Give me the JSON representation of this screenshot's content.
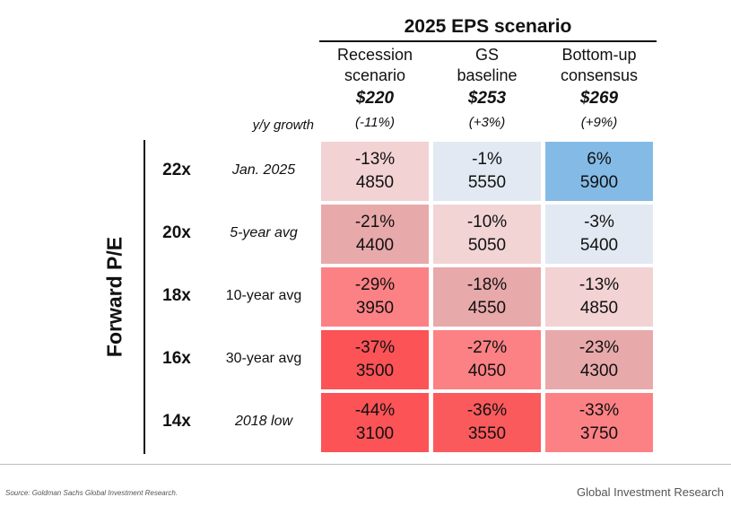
{
  "chart_data": {
    "type": "table",
    "title": "2025 EPS scenario",
    "row_axis_label": "Forward P/E",
    "growth_label": "y/y growth",
    "columns": [
      {
        "name": "Recession scenario",
        "line1": "Recession",
        "line2": "scenario",
        "eps": "$220",
        "growth": "(-11%)"
      },
      {
        "name": "GS baseline",
        "line1": "GS",
        "line2": "baseline",
        "eps": "$253",
        "growth": "(+3%)"
      },
      {
        "name": "Bottom-up consensus",
        "line1": "Bottom-up",
        "line2": "consensus",
        "eps": "$269",
        "growth": "(+9%)"
      }
    ],
    "rows": [
      {
        "pe": "22x",
        "desc": "Jan. 2025",
        "italic": true,
        "cells": [
          {
            "pct": "-13%",
            "level": "4850",
            "color": "#f2d2d3"
          },
          {
            "pct": "-1%",
            "level": "5550",
            "color": "#e2e9f2"
          },
          {
            "pct": "6%",
            "level": "5900",
            "color": "#84bbe6"
          }
        ]
      },
      {
        "pe": "20x",
        "desc": "5-year avg",
        "italic": true,
        "cells": [
          {
            "pct": "-21%",
            "level": "4400",
            "color": "#e8a9ab"
          },
          {
            "pct": "-10%",
            "level": "5050",
            "color": "#f2d4d5"
          },
          {
            "pct": "-3%",
            "level": "5400",
            "color": "#e2e9f2"
          }
        ]
      },
      {
        "pe": "18x",
        "desc": "10-year avg",
        "italic": false,
        "cells": [
          {
            "pct": "-29%",
            "level": "3950",
            "color": "#fc8184"
          },
          {
            "pct": "-18%",
            "level": "4550",
            "color": "#e8a9ab"
          },
          {
            "pct": "-13%",
            "level": "4850",
            "color": "#f2d2d3"
          }
        ]
      },
      {
        "pe": "16x",
        "desc": "30-year avg",
        "italic": false,
        "cells": [
          {
            "pct": "-37%",
            "level": "3500",
            "color": "#fb5356"
          },
          {
            "pct": "-27%",
            "level": "4050",
            "color": "#fc8184"
          },
          {
            "pct": "-23%",
            "level": "4300",
            "color": "#e8a9ab"
          }
        ]
      },
      {
        "pe": "14x",
        "desc": "2018 low",
        "italic": true,
        "cells": [
          {
            "pct": "-44%",
            "level": "3100",
            "color": "#fb5356"
          },
          {
            "pct": "-36%",
            "level": "3550",
            "color": "#fb5a5d"
          },
          {
            "pct": "-33%",
            "level": "3750",
            "color": "#fc8184"
          }
        ]
      }
    ]
  },
  "footer": {
    "source": "Source: Goldman Sachs Global Investment Research.",
    "brand": "Global Investment Research"
  }
}
